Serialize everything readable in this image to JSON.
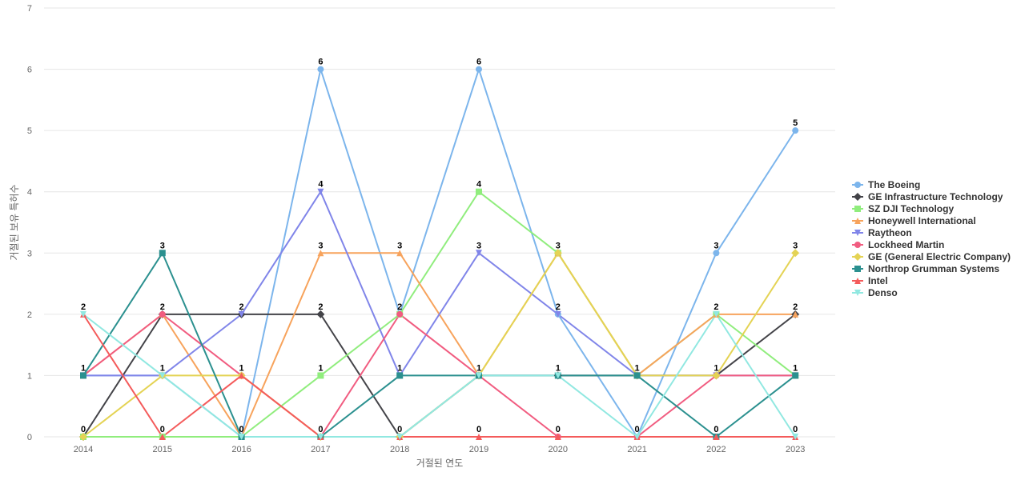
{
  "chart_data": {
    "type": "line",
    "title": "",
    "xlabel": "거절된 연도",
    "ylabel": "거절된 보유 특허수",
    "categories": [
      "2014",
      "2015",
      "2016",
      "2017",
      "2018",
      "2019",
      "2020",
      "2021",
      "2022",
      "2023"
    ],
    "ylim": [
      0,
      7
    ],
    "yticks": [
      "0",
      "1",
      "2",
      "3",
      "4",
      "5",
      "6",
      "7"
    ],
    "grid": true,
    "legend_position": "right",
    "series": [
      {
        "name": "The Boeing",
        "color": "#7cb5ec",
        "marker": "circle",
        "values": [
          1,
          1,
          0,
          6,
          2,
          6,
          2,
          0,
          3,
          5
        ]
      },
      {
        "name": "GE Infrastructure Technology",
        "color": "#434348",
        "marker": "diamond",
        "values": [
          0,
          2,
          2,
          2,
          0,
          1,
          1,
          1,
          1,
          2
        ]
      },
      {
        "name": "SZ DJI Technology",
        "color": "#90ed7d",
        "marker": "square",
        "values": [
          0,
          0,
          0,
          1,
          2,
          4,
          3,
          1,
          2,
          1
        ]
      },
      {
        "name": "Honeywell International",
        "color": "#f7a35c",
        "marker": "triangle",
        "values": [
          1,
          2,
          0,
          3,
          3,
          1,
          3,
          1,
          2,
          2
        ]
      },
      {
        "name": "Raytheon",
        "color": "#8085e9",
        "marker": "triangle-down",
        "values": [
          1,
          1,
          2,
          4,
          1,
          3,
          2,
          1,
          1,
          1
        ]
      },
      {
        "name": "Lockheed Martin",
        "color": "#f15c80",
        "marker": "circle",
        "values": [
          1,
          2,
          1,
          0,
          2,
          1,
          0,
          0,
          1,
          1
        ]
      },
      {
        "name": "GE (General Electric Company)",
        "color": "#e4d354",
        "marker": "diamond",
        "values": [
          0,
          1,
          1,
          0,
          0,
          1,
          3,
          1,
          1,
          3
        ]
      },
      {
        "name": "Northrop Grumman Systems",
        "color": "#2b908f",
        "marker": "square",
        "values": [
          1,
          3,
          0,
          0,
          1,
          1,
          1,
          1,
          0,
          1
        ]
      },
      {
        "name": "Intel",
        "color": "#f45b5b",
        "marker": "triangle",
        "values": [
          2,
          0,
          1,
          0,
          0,
          0,
          0,
          0,
          0,
          0
        ]
      },
      {
        "name": "Denso",
        "color": "#91e8e1",
        "marker": "triangle-down",
        "values": [
          2,
          1,
          0,
          0,
          0,
          1,
          1,
          0,
          2,
          0
        ]
      }
    ],
    "data_labels": [
      {
        "category": "2014",
        "value": 2,
        "text": "2"
      },
      {
        "category": "2014",
        "value": 1,
        "text": "1"
      },
      {
        "category": "2014",
        "value": 0,
        "text": "0"
      },
      {
        "category": "2015",
        "value": 3,
        "text": "3"
      },
      {
        "category": "2015",
        "value": 2,
        "text": "2"
      },
      {
        "category": "2015",
        "value": 1,
        "text": "1"
      },
      {
        "category": "2015",
        "value": 0,
        "text": "0"
      },
      {
        "category": "2016",
        "value": 2,
        "text": "2"
      },
      {
        "category": "2016",
        "value": 1,
        "text": "1"
      },
      {
        "category": "2016",
        "value": 0,
        "text": "0"
      },
      {
        "category": "2017",
        "value": 6,
        "text": "6"
      },
      {
        "category": "2017",
        "value": 4,
        "text": "4"
      },
      {
        "category": "2017",
        "value": 3,
        "text": "3"
      },
      {
        "category": "2017",
        "value": 2,
        "text": "2"
      },
      {
        "category": "2017",
        "value": 1,
        "text": "1"
      },
      {
        "category": "2017",
        "value": 0,
        "text": "0"
      },
      {
        "category": "2018",
        "value": 3,
        "text": "3"
      },
      {
        "category": "2018",
        "value": 2,
        "text": "2"
      },
      {
        "category": "2018",
        "value": 1,
        "text": "1"
      },
      {
        "category": "2018",
        "value": 0,
        "text": "0"
      },
      {
        "category": "2019",
        "value": 6,
        "text": "6"
      },
      {
        "category": "2019",
        "value": 4,
        "text": "4"
      },
      {
        "category": "2019",
        "value": 3,
        "text": "3"
      },
      {
        "category": "2019",
        "value": 1,
        "text": "1"
      },
      {
        "category": "2019",
        "value": 0,
        "text": "0"
      },
      {
        "category": "2020",
        "value": 3,
        "text": "3"
      },
      {
        "category": "2020",
        "value": 2,
        "text": "2"
      },
      {
        "category": "2020",
        "value": 1,
        "text": "1"
      },
      {
        "category": "2020",
        "value": 0,
        "text": "0"
      },
      {
        "category": "2021",
        "value": 1,
        "text": "1"
      },
      {
        "category": "2021",
        "value": 0,
        "text": "0"
      },
      {
        "category": "2022",
        "value": 3,
        "text": "3"
      },
      {
        "category": "2022",
        "value": 2,
        "text": "2"
      },
      {
        "category": "2022",
        "value": 1,
        "text": "1"
      },
      {
        "category": "2022",
        "value": 0,
        "text": "0"
      },
      {
        "category": "2023",
        "value": 5,
        "text": "5"
      },
      {
        "category": "2023",
        "value": 3,
        "text": "3"
      },
      {
        "category": "2023",
        "value": 2,
        "text": "2"
      },
      {
        "category": "2023",
        "value": 1,
        "text": "1"
      },
      {
        "category": "2023",
        "value": 0,
        "text": "0"
      }
    ]
  }
}
